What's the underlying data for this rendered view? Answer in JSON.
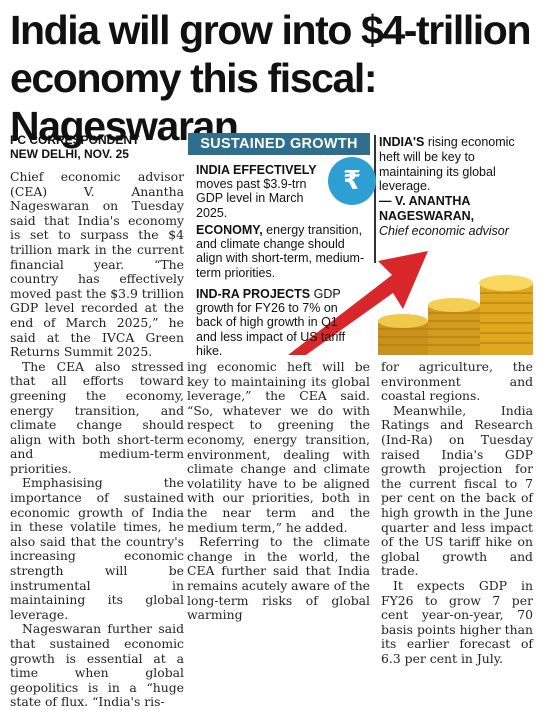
{
  "headline": {
    "line1": "India will grow into $4-trillion",
    "line2": "economy this fiscal: Nageswaran"
  },
  "byline": {
    "author": "FC CORRESPONDENT",
    "dateline": "NEW DELHI, NOV. 25"
  },
  "infobox": {
    "banner": "SUSTAINED GROWTH",
    "rupee_icon": "rupee-bag-icon",
    "facts": [
      {
        "lead": "INDIA EFFECTIVELY",
        "text": "moves past $3.9-trn GDP level in March 2025."
      },
      {
        "lead": "ECONOMY,",
        "text": "energy transition, and climate change should align with short-term, medium-term priorities."
      },
      {
        "lead": "IND-RA PROJECTS",
        "text": "GDP growth for FY26 to 7% on back of high growth in Q1 and less impact of US tariff hike."
      }
    ],
    "quote": {
      "lead": "INDIA'S",
      "text": "rising economic heft will be key to maintaining its global leverage.",
      "attribution": "— V. ANANTHA NAGESWARAN,",
      "role": "Chief economic advisor"
    },
    "colors": {
      "banner": "#2f6f8e",
      "arrow": "#d8262b",
      "coin": "#e0a81f"
    }
  },
  "body": {
    "col1": [
      "Chief economic advisor (CEA) V. Anantha Nageswaran on Tuesday said that India's economy is set to surpass the $4 trillion mark in the current financial year. “The country has effectively moved past the $3.9 trillion GDP level recorded at the end of March 2025,” he said at the IVCA Green Returns Summit 2025.",
      "The CEA also stressed that all efforts toward greening the economy, energy transition, and climate change should align with both short-term and medium-term priorities.",
      "Emphasising the importance of sustained economic growth of India in these volatile times, he also said that the country's increasing economic strength will be instrumental in maintaining its global leverage.",
      "Nageswaran further said that sustained economic growth is essential at a time when global geopolitics is in a “huge state of flux. “India's ris-"
    ],
    "col2": [
      "ing economic heft will be key to maintaining its global leverage,” the CEA said. “So, whatever we do with respect to greening the economy, energy transition, environment, dealing with climate change and climate volatility have to be aligned with our priorities, both in the near term and the medium term,” he added.",
      "Referring to the climate change in the world, the CEA further said that India remains acutely aware of the long-term risks of global warming"
    ],
    "col3": [
      "for agriculture, the environment and coastal regions.",
      "Meanwhile, India Ratings and Research (Ind-Ra) on Tuesday raised India's GDP growth projection for the current fiscal to 7 per cent on the back of high growth in the June quarter and less impact of the US tariff hike on global growth and trade.",
      "It expects GDP in FY26 to grow 7 per cent year-on-year, 70 basis points higher than its earlier forecast of 6.3 per cent in July."
    ]
  }
}
